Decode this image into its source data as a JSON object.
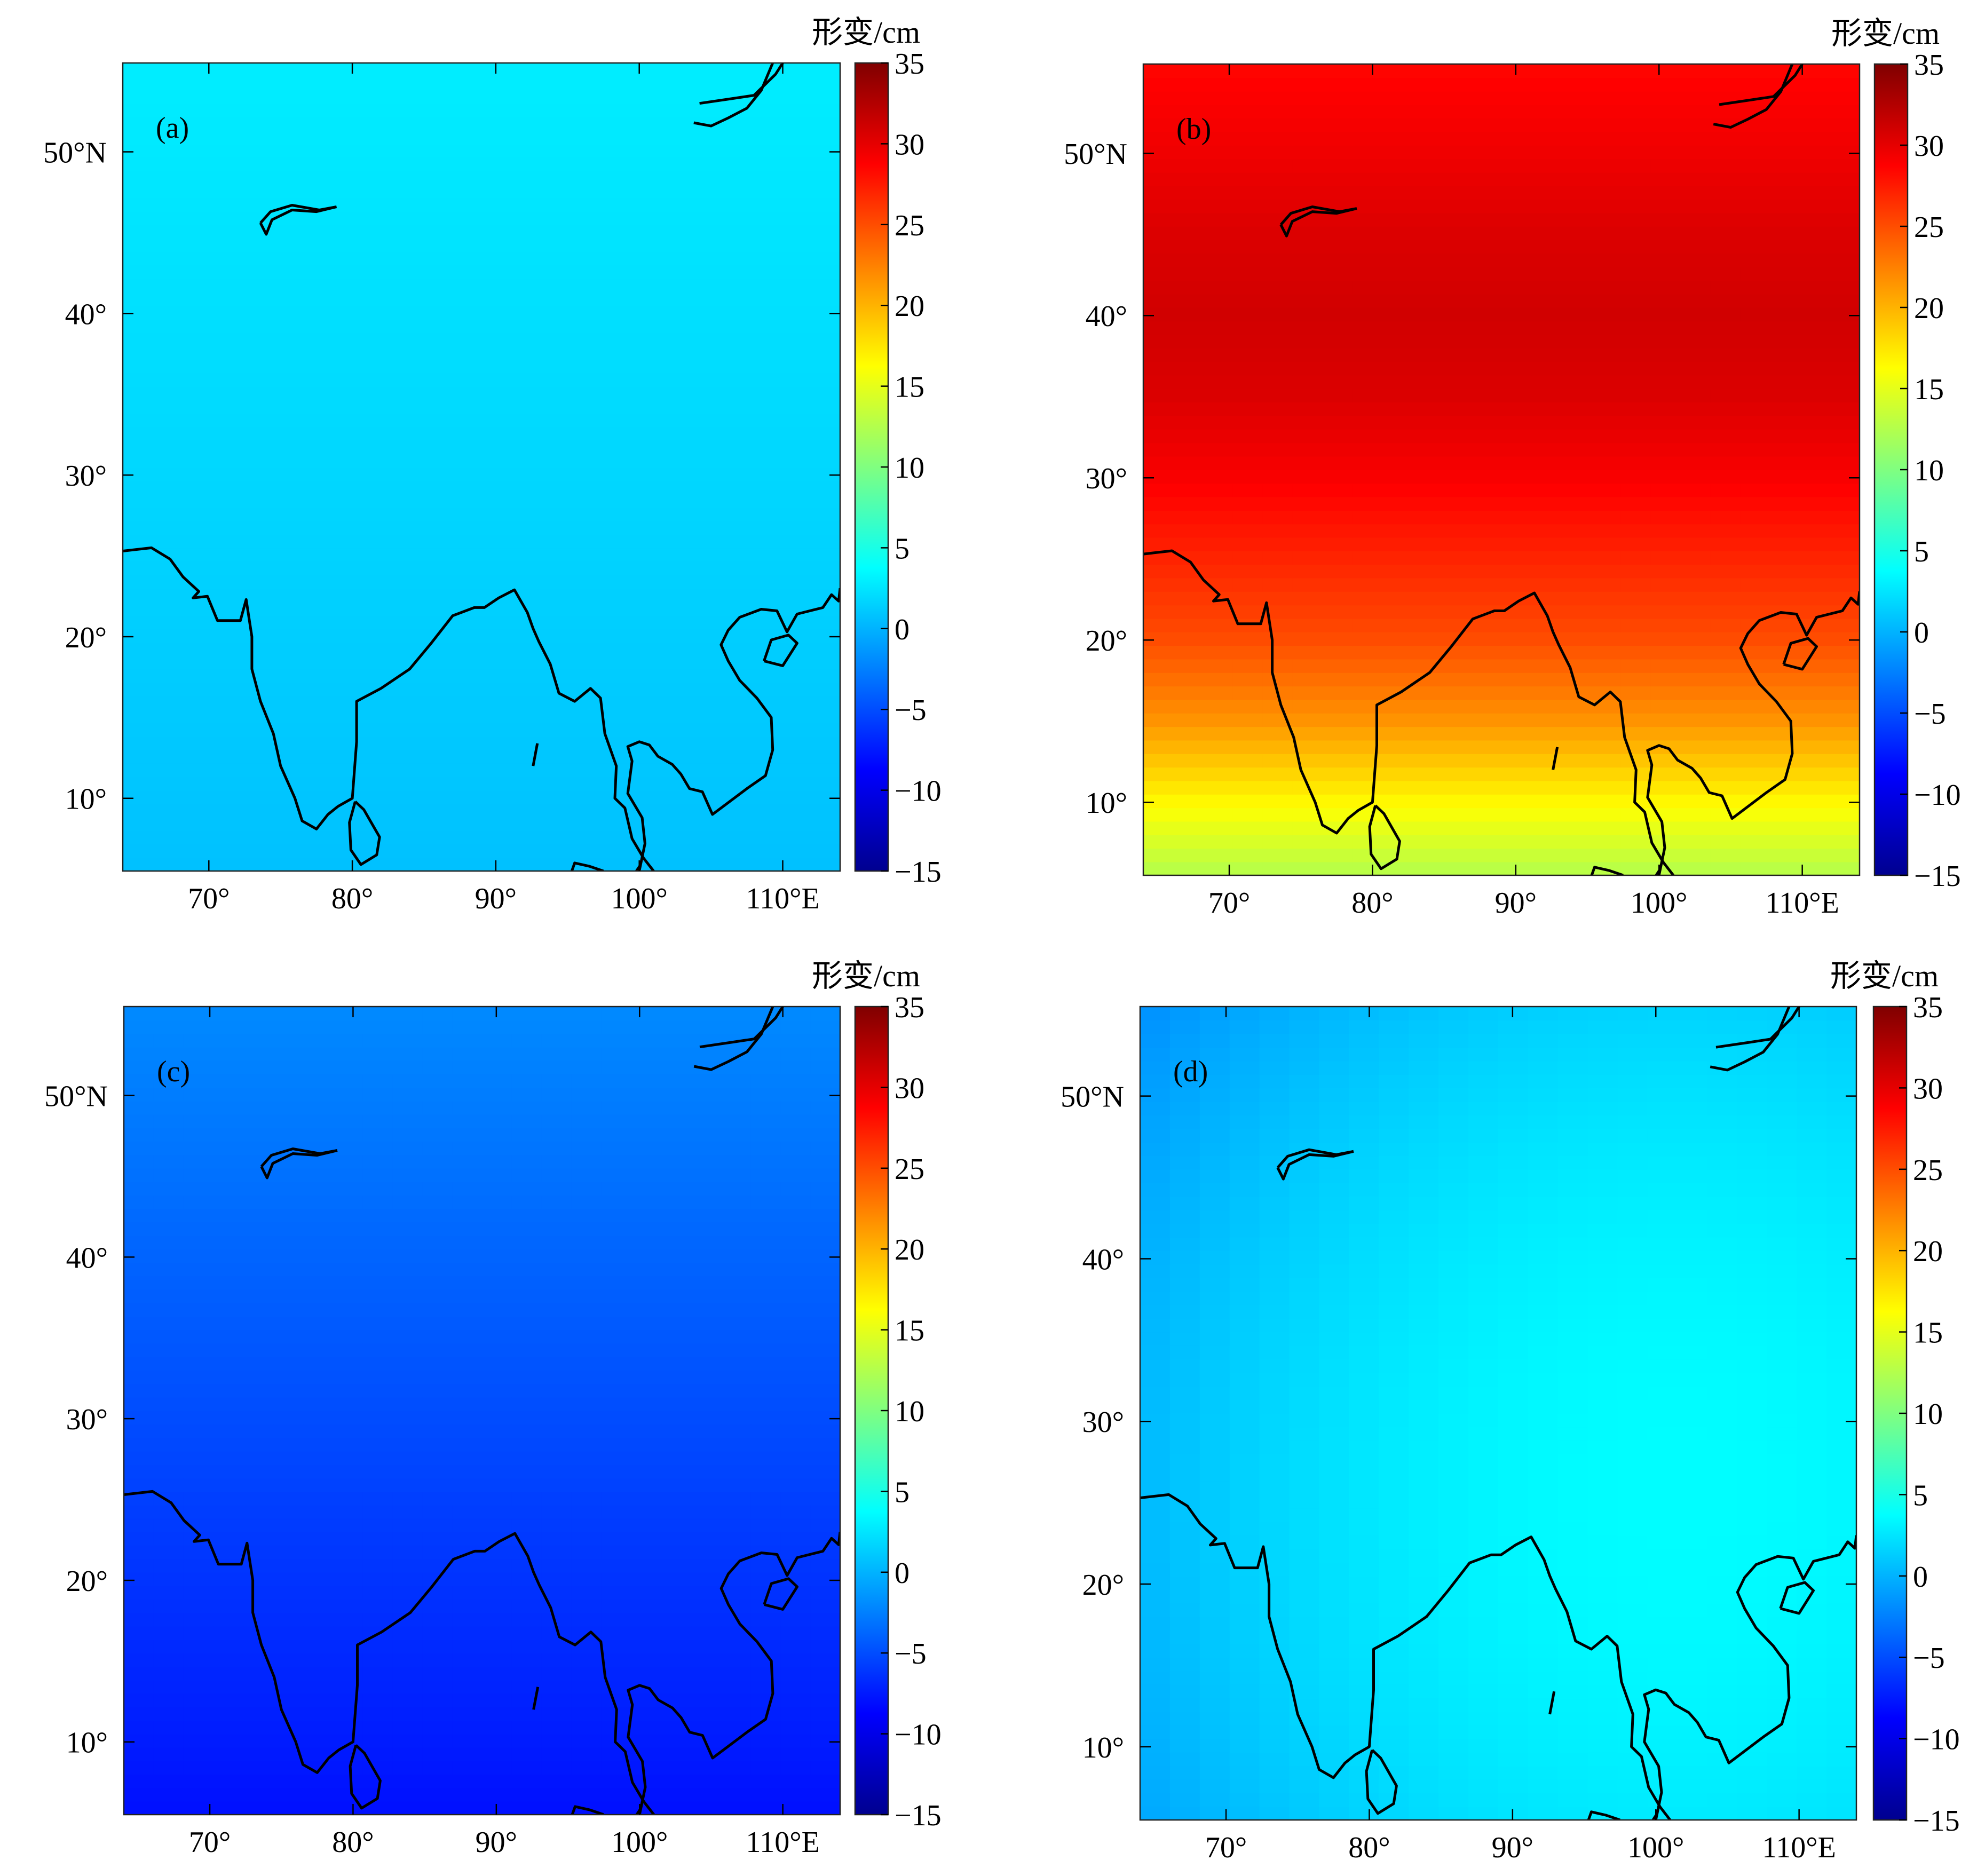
{
  "figure": {
    "domain_note": ""
  },
  "colormap": [
    "#00008f",
    "#0000ff",
    "#0080ff",
    "#00ffff",
    "#80ff80",
    "#ffff00",
    "#ff8000",
    "#ff0000",
    "#800000"
  ],
  "chart_data": [
    {
      "type": "heatmap",
      "panel_label": "(a)",
      "colorbar_title": "形变/cm",
      "colorbar_ticks": [
        "35",
        "30",
        "25",
        "20",
        "15",
        "10",
        "5",
        "0",
        "−5",
        "−10",
        "−15"
      ],
      "clim": [
        -15,
        35
      ],
      "x_ticks": [
        "70°",
        "80°",
        "90°",
        "100°",
        "110°E"
      ],
      "y_ticks": [
        "50°N",
        "40°",
        "30°",
        "20°",
        "10°"
      ],
      "xlim": [
        64,
        114
      ],
      "ylim": [
        5.5,
        55.5
      ],
      "field": {
        "kind": "lat_gradient",
        "south": 0.7,
        "north": 2.9
      }
    },
    {
      "type": "heatmap",
      "panel_label": "(b)",
      "colorbar_title": "形变/cm",
      "colorbar_ticks": [
        "35",
        "30",
        "25",
        "20",
        "15",
        "10",
        "5",
        "0",
        "−5",
        "−10",
        "−15"
      ],
      "clim": [
        -15,
        35
      ],
      "x_ticks": [
        "70°",
        "80°",
        "90°",
        "100°",
        "110°E"
      ],
      "y_ticks": [
        "50°N",
        "40°",
        "30°",
        "20°",
        "10°"
      ],
      "xlim": [
        64,
        114
      ],
      "ylim": [
        5.5,
        55.5
      ],
      "field": {
        "kind": "lat_profile",
        "profile": [
          [
            5.5,
            12.5
          ],
          [
            10,
            16.5
          ],
          [
            15,
            21.5
          ],
          [
            20,
            25
          ],
          [
            25,
            27
          ],
          [
            30,
            29
          ],
          [
            35,
            30.5
          ],
          [
            40,
            31
          ],
          [
            45,
            30.5
          ],
          [
            50,
            29.5
          ],
          [
            55.5,
            28.5
          ]
        ]
      }
    },
    {
      "type": "heatmap",
      "panel_label": "(c)",
      "colorbar_title": "形变/cm",
      "colorbar_ticks": [
        "35",
        "30",
        "25",
        "20",
        "15",
        "10",
        "5",
        "0",
        "−5",
        "−10",
        "−15"
      ],
      "clim": [
        -15,
        35
      ],
      "x_ticks": [
        "70°",
        "80°",
        "90°",
        "100°",
        "110°E"
      ],
      "y_ticks": [
        "50°N",
        "40°",
        "30°",
        "20°",
        "10°"
      ],
      "xlim": [
        64,
        114
      ],
      "ylim": [
        5.5,
        55.5
      ],
      "field": {
        "kind": "lat_gradient",
        "south": -8.0,
        "north": -2.0
      }
    },
    {
      "type": "heatmap",
      "panel_label": "(d)",
      "colorbar_title": "形变/cm",
      "colorbar_ticks": [
        "35",
        "30",
        "25",
        "20",
        "15",
        "10",
        "5",
        "0",
        "−5",
        "−10",
        "−15"
      ],
      "clim": [
        -15,
        35
      ],
      "x_ticks": [
        "70°",
        "80°",
        "90°",
        "100°",
        "110°E"
      ],
      "y_ticks": [
        "50°N",
        "40°",
        "30°",
        "20°",
        "10°"
      ],
      "xlim": [
        64,
        114
      ],
      "ylim": [
        5.5,
        55.5
      ],
      "field": {
        "kind": "plane",
        "base": 3.3,
        "ax": 0.06,
        "ay": 0.02,
        "lon0": 89,
        "lat0": 30,
        "curv": -0.0012
      }
    }
  ],
  "coastlines": {
    "india_ne": [
      [
        64,
        25.3
      ],
      [
        66,
        25.5
      ],
      [
        67.3,
        24.8
      ],
      [
        68.2,
        23.7
      ],
      [
        69.3,
        22.8
      ],
      [
        68.9,
        22.4
      ],
      [
        69.9,
        22.5
      ],
      [
        70.6,
        21
      ],
      [
        72.2,
        21
      ],
      [
        72.6,
        22.3
      ],
      [
        73,
        20
      ],
      [
        73,
        18
      ],
      [
        73.6,
        16
      ],
      [
        74.5,
        14
      ],
      [
        75,
        12
      ],
      [
        76,
        10
      ],
      [
        76.5,
        8.6
      ],
      [
        77.5,
        8.1
      ],
      [
        78.3,
        9
      ],
      [
        79,
        9.5
      ],
      [
        80,
        10
      ],
      [
        80.3,
        13.5
      ],
      [
        80.3,
        16
      ],
      [
        82,
        16.8
      ],
      [
        84,
        18
      ],
      [
        85.5,
        19.6
      ],
      [
        87,
        21.3
      ],
      [
        88.5,
        21.8
      ],
      [
        89.2,
        21.8
      ],
      [
        90.2,
        22.4
      ],
      [
        91.3,
        22.9
      ],
      [
        92.2,
        21.5
      ],
      [
        92.6,
        20.5
      ],
      [
        93,
        19.7
      ],
      [
        93.8,
        18.3
      ],
      [
        94.4,
        16.5
      ],
      [
        95.5,
        16
      ],
      [
        96.6,
        16.8
      ],
      [
        97.3,
        16.2
      ],
      [
        97.6,
        14
      ],
      [
        98.4,
        12
      ],
      [
        98.3,
        10
      ],
      [
        99,
        9.4
      ],
      [
        99.5,
        7.5
      ],
      [
        100.3,
        6.3
      ],
      [
        101,
        5.5
      ]
    ],
    "sri_lanka": [
      [
        80.2,
        9.8
      ],
      [
        79.8,
        8.5
      ],
      [
        79.9,
        6.8
      ],
      [
        80.6,
        5.9
      ],
      [
        81.7,
        6.5
      ],
      [
        81.9,
        7.6
      ],
      [
        80.8,
        9.3
      ],
      [
        80.2,
        9.8
      ]
    ],
    "andaman": [
      [
        92.9,
        13.4
      ],
      [
        92.6,
        12
      ]
    ],
    "se_asia": [
      [
        100,
        5.5
      ],
      [
        100.4,
        7.2
      ],
      [
        100.2,
        8.8
      ],
      [
        99.2,
        10.3
      ],
      [
        99.5,
        12.3
      ],
      [
        99.2,
        13.2
      ],
      [
        100,
        13.5
      ],
      [
        100.7,
        13.3
      ],
      [
        101.3,
        12.6
      ],
      [
        102.3,
        12.1
      ],
      [
        102.9,
        11.5
      ],
      [
        103.5,
        10.6
      ],
      [
        104.4,
        10.4
      ],
      [
        105.1,
        9
      ],
      [
        106,
        9.6
      ],
      [
        107.5,
        10.6
      ],
      [
        108.8,
        11.4
      ],
      [
        109.3,
        13
      ],
      [
        109.2,
        15
      ],
      [
        108.2,
        16.2
      ],
      [
        107,
        17.3
      ],
      [
        106.2,
        18.5
      ],
      [
        105.7,
        19.5
      ],
      [
        106.2,
        20.4
      ],
      [
        107,
        21.2
      ],
      [
        108.5,
        21.7
      ],
      [
        109.6,
        21.6
      ],
      [
        110.3,
        20.3
      ],
      [
        111,
        21.4
      ],
      [
        112.8,
        21.8
      ],
      [
        113.4,
        22.6
      ],
      [
        113.9,
        22.2
      ],
      [
        114,
        23
      ]
    ],
    "hainan": [
      [
        108.7,
        18.5
      ],
      [
        110,
        18.2
      ],
      [
        111,
        19.6
      ],
      [
        110.4,
        20.1
      ],
      [
        109.2,
        19.8
      ],
      [
        108.7,
        18.5
      ]
    ],
    "ne_sea_a": [
      [
        104.2,
        53
      ],
      [
        106.5,
        53.3
      ],
      [
        108,
        53.5
      ],
      [
        109.5,
        54.8
      ],
      [
        110,
        55.5
      ]
    ],
    "ne_sea_b": [
      [
        103.8,
        51.8
      ],
      [
        105,
        51.6
      ],
      [
        106.2,
        52.1
      ],
      [
        107.5,
        52.7
      ],
      [
        108.5,
        53.8
      ],
      [
        109.3,
        55.5
      ]
    ],
    "balkhash_a": [
      [
        73.6,
        45.6
      ],
      [
        74.3,
        46.3
      ],
      [
        75.8,
        46.7
      ],
      [
        77.7,
        46.4
      ],
      [
        78.9,
        46.6
      ]
    ],
    "balkhash_b": [
      [
        73.6,
        45.6
      ],
      [
        74,
        44.9
      ],
      [
        74.4,
        45.8
      ],
      [
        75.8,
        46.4
      ],
      [
        77.5,
        46.3
      ],
      [
        78.9,
        46.6
      ]
    ],
    "bottom_is_1": [
      [
        95.3,
        5.5
      ],
      [
        95.5,
        6
      ],
      [
        96.5,
        5.8
      ],
      [
        97.5,
        5.5
      ]
    ],
    "bottom_is_2": [
      [
        99.8,
        5.5
      ],
      [
        100.1,
        5.9
      ]
    ]
  }
}
